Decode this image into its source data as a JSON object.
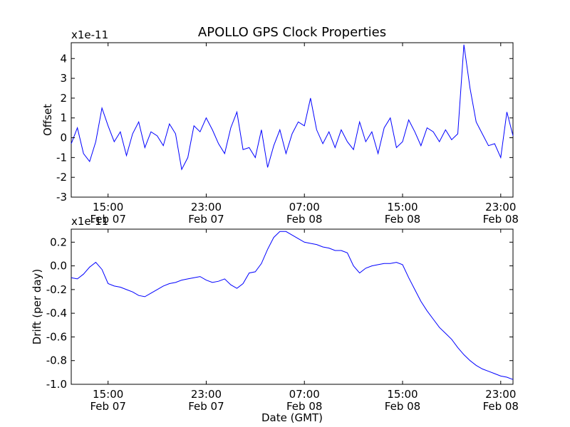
{
  "chart_data": [
    {
      "type": "line",
      "title": "APOLLO GPS Clock Properties",
      "ylabel": "Offset",
      "xlabel": "",
      "scale_label": "x1e-11",
      "line_color": "#0000ff",
      "x_unit": "hours since Feb 07 12:00 GMT",
      "xlim": [
        0,
        36
      ],
      "ylim": [
        -3,
        4.8
      ],
      "x_ticks": [
        {
          "x": 3,
          "line1": "15:00",
          "line2": "Feb 07"
        },
        {
          "x": 11,
          "line1": "23:00",
          "line2": "Feb 07"
        },
        {
          "x": 19,
          "line1": "07:00",
          "line2": "Feb 08"
        },
        {
          "x": 27,
          "line1": "15:00",
          "line2": "Feb 08"
        },
        {
          "x": 35,
          "line1": "23:00",
          "line2": "Feb 08"
        }
      ],
      "y_ticks": [
        {
          "value": -3,
          "label": "-3"
        },
        {
          "value": -2,
          "label": "-2"
        },
        {
          "value": -1,
          "label": "-1"
        },
        {
          "value": 0,
          "label": "0"
        },
        {
          "value": 1,
          "label": "1"
        },
        {
          "value": 2,
          "label": "2"
        },
        {
          "value": 3,
          "label": "3"
        },
        {
          "value": 4,
          "label": "4"
        }
      ],
      "series": [
        {
          "x": [
            0,
            0.5,
            1,
            1.5,
            2,
            2.5,
            3,
            3.5,
            4,
            4.5,
            5,
            5.5,
            6,
            6.5,
            7,
            7.5,
            8,
            8.5,
            9,
            9.5,
            10,
            10.5,
            11,
            11.5,
            12,
            12.5,
            13,
            13.5,
            14,
            14.5,
            15,
            15.5,
            16,
            16.5,
            17,
            17.5,
            18,
            18.5,
            19,
            19.5,
            20,
            20.5,
            21,
            21.5,
            22,
            22.5,
            23,
            23.5,
            24,
            24.5,
            25,
            25.5,
            26,
            26.5,
            27,
            27.5,
            28,
            28.5,
            29,
            29.5,
            30,
            30.5,
            31,
            31.5,
            32,
            32.5,
            33,
            33.5,
            34,
            34.5,
            35,
            35.5,
            36
          ],
          "y": [
            -0.3,
            0.5,
            -0.8,
            -1.2,
            -0.2,
            1.5,
            0.6,
            -0.2,
            0.3,
            -0.9,
            0.2,
            0.8,
            -0.5,
            0.3,
            0.1,
            -0.4,
            0.7,
            0.2,
            -1.6,
            -1.0,
            0.6,
            0.3,
            1.0,
            0.4,
            -0.3,
            -0.8,
            0.5,
            1.3,
            -0.6,
            -0.5,
            -1.0,
            0.4,
            -1.5,
            -0.4,
            0.4,
            -0.8,
            0.2,
            0.8,
            0.6,
            2.0,
            0.4,
            -0.3,
            0.3,
            -0.5,
            0.4,
            -0.2,
            -0.6,
            0.8,
            -0.2,
            0.3,
            -0.8,
            0.5,
            1.0,
            -0.5,
            -0.2,
            0.9,
            0.3,
            -0.4,
            0.5,
            0.3,
            -0.2,
            0.4,
            -0.1,
            0.2,
            4.7,
            2.5,
            0.8,
            0.2,
            -0.4,
            -0.3,
            -1.0,
            1.3,
            0.1
          ]
        }
      ]
    },
    {
      "type": "line",
      "title": "",
      "ylabel": "Drift (per day)",
      "xlabel": "Date (GMT)",
      "scale_label": "x1e-11",
      "line_color": "#0000ff",
      "x_unit": "hours since Feb 07 12:00 GMT",
      "xlim": [
        0,
        36
      ],
      "ylim": [
        -1.0,
        0.31
      ],
      "x_ticks": [
        {
          "x": 3,
          "line1": "15:00",
          "line2": "Feb 07"
        },
        {
          "x": 11,
          "line1": "23:00",
          "line2": "Feb 07"
        },
        {
          "x": 19,
          "line1": "07:00",
          "line2": "Feb 08"
        },
        {
          "x": 27,
          "line1": "15:00",
          "line2": "Feb 08"
        },
        {
          "x": 35,
          "line1": "23:00",
          "line2": "Feb 08"
        }
      ],
      "y_ticks": [
        {
          "value": -1.0,
          "label": "-1.0"
        },
        {
          "value": -0.8,
          "label": "-0.8"
        },
        {
          "value": -0.6,
          "label": "-0.6"
        },
        {
          "value": -0.4,
          "label": "-0.4"
        },
        {
          "value": -0.2,
          "label": "-0.2"
        },
        {
          "value": 0.0,
          "label": "0.0"
        },
        {
          "value": 0.2,
          "label": "0.2"
        }
      ],
      "series": [
        {
          "x": [
            0,
            0.5,
            1.0,
            1.5,
            2.0,
            2.5,
            3.0,
            3.5,
            4.0,
            4.5,
            5.0,
            5.5,
            6.0,
            6.5,
            7.0,
            7.5,
            8.0,
            8.5,
            9.0,
            9.5,
            10.0,
            10.5,
            11.0,
            11.5,
            12.0,
            12.5,
            13.0,
            13.5,
            14.0,
            14.5,
            15.0,
            15.5,
            16.0,
            16.5,
            17.0,
            17.5,
            18.0,
            18.5,
            19.0,
            19.5,
            20.0,
            20.5,
            21.0,
            21.5,
            22.0,
            22.5,
            23.0,
            23.5,
            24.0,
            24.5,
            25.0,
            25.5,
            26.0,
            26.5,
            27.0,
            27.5,
            28.0,
            28.5,
            29.0,
            29.5,
            30.0,
            30.5,
            31.0,
            31.5,
            32.0,
            32.5,
            33.0,
            33.5,
            34.0,
            34.5,
            35.0,
            35.5,
            36.0
          ],
          "y": [
            -0.1,
            -0.11,
            -0.07,
            -0.01,
            0.03,
            -0.03,
            -0.15,
            -0.17,
            -0.18,
            -0.2,
            -0.22,
            -0.25,
            -0.26,
            -0.23,
            -0.2,
            -0.17,
            -0.15,
            -0.14,
            -0.12,
            -0.11,
            -0.1,
            -0.09,
            -0.12,
            -0.14,
            -0.13,
            -0.11,
            -0.16,
            -0.19,
            -0.15,
            -0.06,
            -0.05,
            0.02,
            0.14,
            0.24,
            0.29,
            0.29,
            0.26,
            0.23,
            0.2,
            0.19,
            0.18,
            0.16,
            0.15,
            0.13,
            0.13,
            0.11,
            0.0,
            -0.06,
            -0.02,
            0.0,
            0.01,
            0.02,
            0.02,
            0.03,
            0.01,
            -0.1,
            -0.2,
            -0.3,
            -0.38,
            -0.45,
            -0.52,
            -0.57,
            -0.62,
            -0.69,
            -0.75,
            -0.8,
            -0.84,
            -0.87,
            -0.89,
            -0.91,
            -0.93,
            -0.94,
            -0.96
          ]
        }
      ]
    }
  ]
}
